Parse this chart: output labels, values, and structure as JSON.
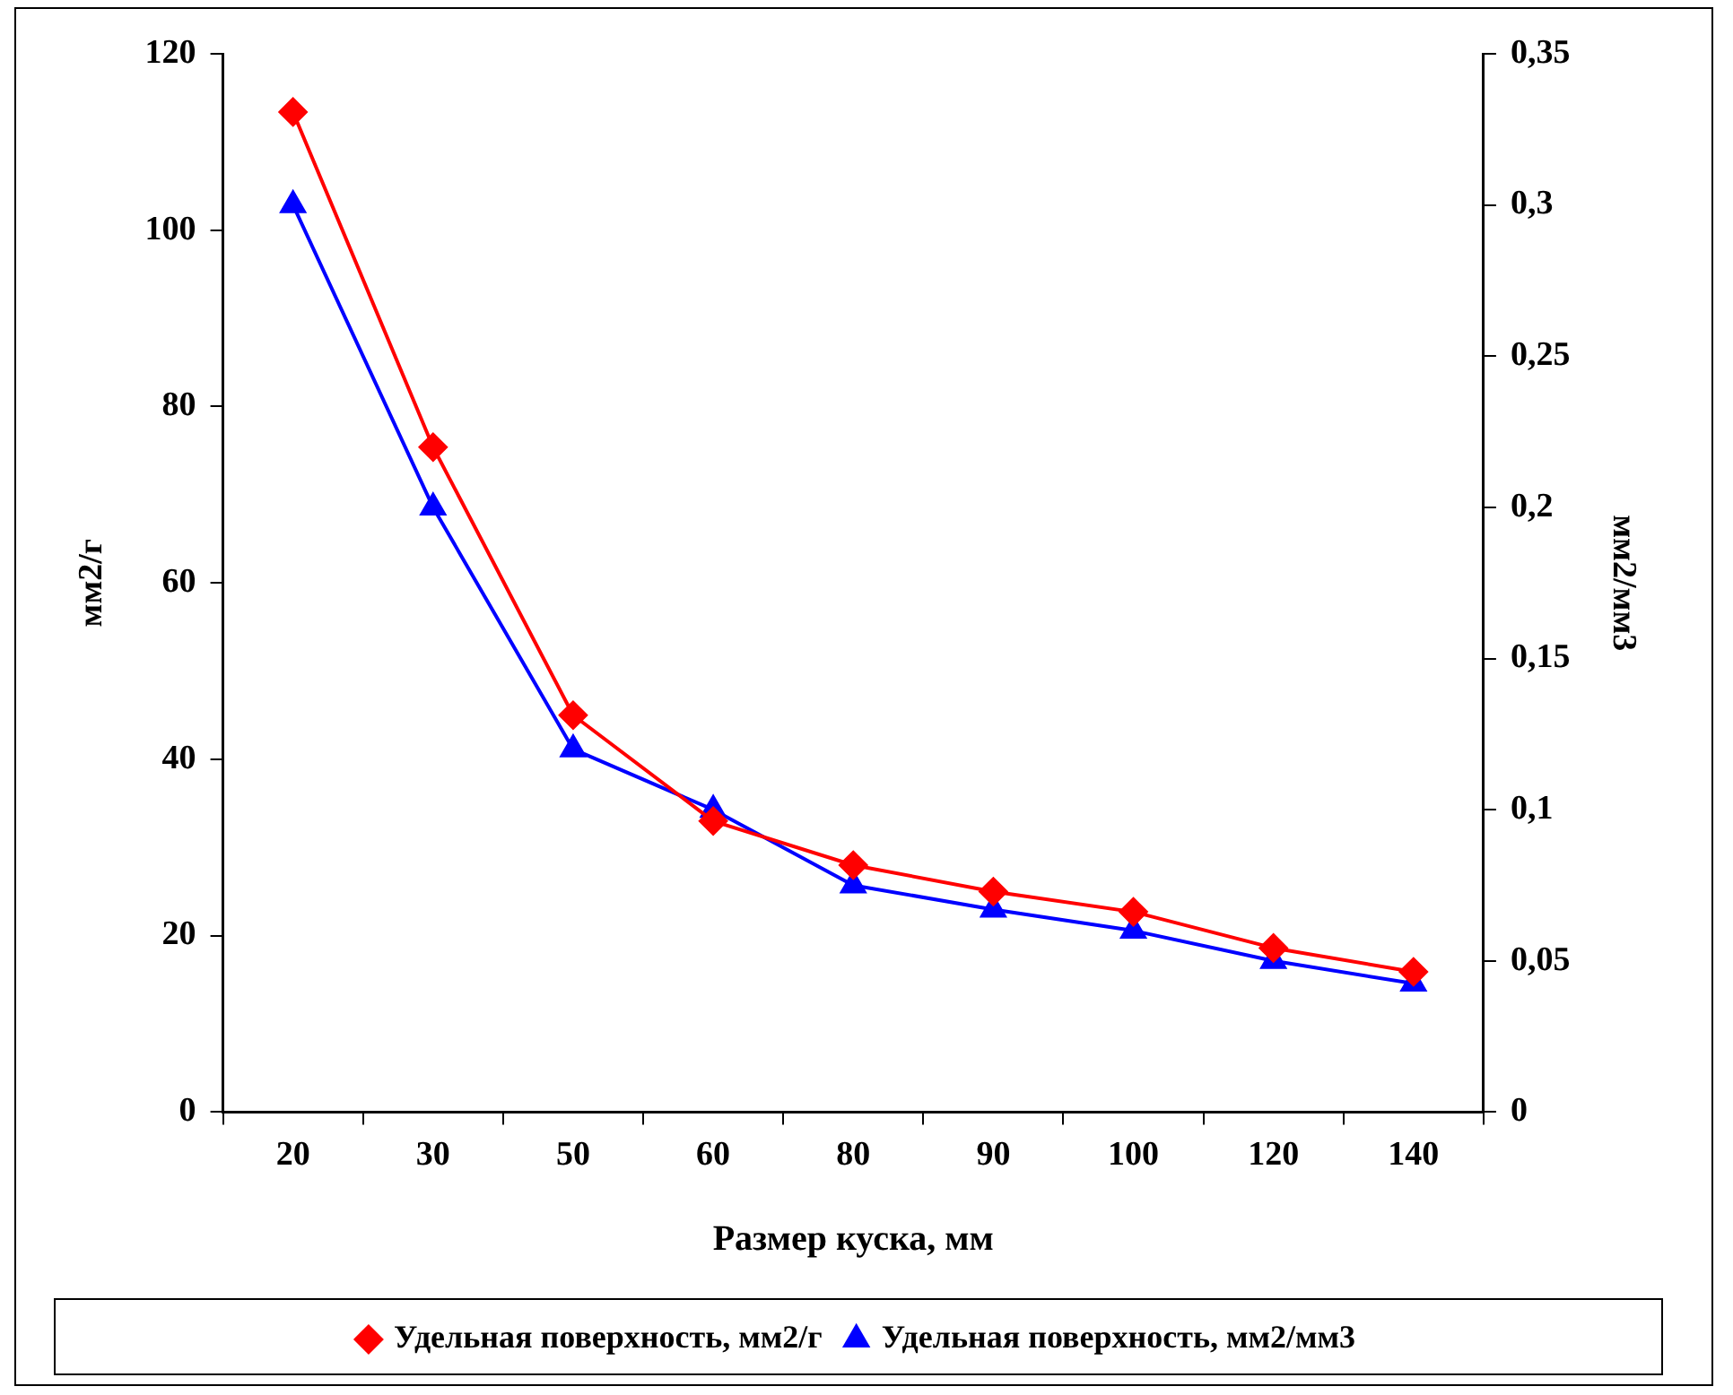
{
  "chart_data": {
    "type": "line",
    "xlabel": "Размер куска, мм",
    "ylabel": "мм2/г",
    "y2label": "мм2/мм3",
    "categories": [
      "20",
      "30",
      "50",
      "60",
      "80",
      "90",
      "100",
      "120",
      "140"
    ],
    "series": [
      {
        "name": "Удельная поверхность, мм2/г",
        "color": "#ff0000",
        "marker": "diamond",
        "values": [
          113.4,
          75.4,
          45,
          33,
          28,
          25,
          22.7,
          18.6,
          15.9
        ]
      },
      {
        "name": "Удельная поверхность, мм2/мм3",
        "color": "#0000ff",
        "marker": "triangle",
        "axis": "y2",
        "values": [
          0.3,
          0.2,
          0.12,
          0.1,
          0.075,
          0.067,
          0.06,
          0.05,
          0.0425
        ]
      }
    ],
    "ylim": [
      0,
      120
    ],
    "yticks": [
      0,
      20,
      40,
      60,
      80,
      100,
      120
    ],
    "y2lim": [
      0,
      0.35
    ],
    "y2ticks": [
      {
        "value": 0,
        "label": "0"
      },
      {
        "value": 0.05,
        "label": "0,05"
      },
      {
        "value": 0.1,
        "label": "0,1"
      },
      {
        "value": 0.15,
        "label": "0,15"
      },
      {
        "value": 0.2,
        "label": "0,2"
      },
      {
        "value": 0.25,
        "label": "0,25"
      },
      {
        "value": 0.3,
        "label": "0,3"
      },
      {
        "value": 0.35,
        "label": "0,35"
      }
    ],
    "grid": false,
    "legend": "bottom",
    "line_style": "solid"
  }
}
